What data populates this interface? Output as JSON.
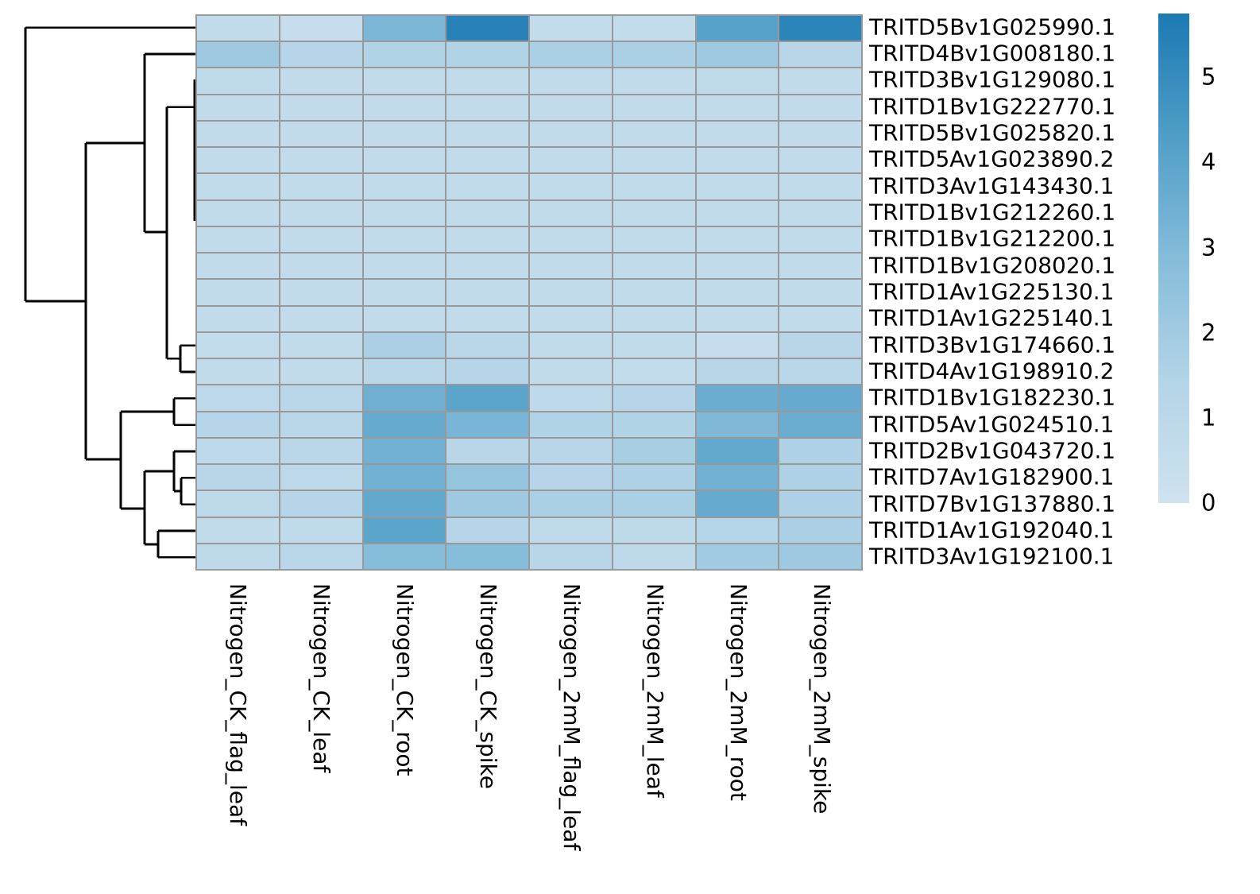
{
  "chart_data": {
    "type": "heatmap",
    "title": "",
    "columns": [
      "Nitrogen_CK_flag_leaf",
      "Nitrogen_CK_leaf",
      "Nitrogen_CK_root",
      "Nitrogen_CK_spike",
      "Nitrogen_2mM_flag_leaf",
      "Nitrogen_2mM_leaf",
      "Nitrogen_2mM_root",
      "Nitrogen_2mM_spike"
    ],
    "rows": [
      "TRITD5Bv1G025990.1",
      "TRITD4Bv1G008180.1",
      "TRITD3Bv1G129080.1",
      "TRITD1Bv1G222770.1",
      "TRITD5Bv1G025820.1",
      "TRITD5Av1G023890.2",
      "TRITD3Av1G143430.1",
      "TRITD1Bv1G212260.1",
      "TRITD1Bv1G212200.1",
      "TRITD1Bv1G208020.1",
      "TRITD1Av1G225130.1",
      "TRITD1Av1G225140.1",
      "TRITD3Bv1G174660.1",
      "TRITD4Av1G198910.2",
      "TRITD1Bv1G182230.1",
      "TRITD5Av1G024510.1",
      "TRITD2Bv1G043720.1",
      "TRITD7Av1G182900.1",
      "TRITD7Bv1G137880.1",
      "TRITD1Av1G192040.1",
      "TRITD3Av1G192100.1"
    ],
    "matrix": [
      [
        0.7,
        0.5,
        3.1,
        5.4,
        0.6,
        0.6,
        4.1,
        5.3
      ],
      [
        2.1,
        1.3,
        1.5,
        1.5,
        1.7,
        1.7,
        2.1,
        1.2
      ],
      [
        0.8,
        0.7,
        0.7,
        0.7,
        0.7,
        0.7,
        0.8,
        0.7
      ],
      [
        0.7,
        0.7,
        0.7,
        0.7,
        0.7,
        0.7,
        0.7,
        0.7
      ],
      [
        0.7,
        0.7,
        0.7,
        0.7,
        0.7,
        0.7,
        0.7,
        0.7
      ],
      [
        0.7,
        0.7,
        0.7,
        0.7,
        0.7,
        0.7,
        0.7,
        0.7
      ],
      [
        0.7,
        0.7,
        0.7,
        0.7,
        0.7,
        0.7,
        0.7,
        0.7
      ],
      [
        0.7,
        0.7,
        0.7,
        0.7,
        0.7,
        0.7,
        0.7,
        0.7
      ],
      [
        0.7,
        0.7,
        0.7,
        0.7,
        0.7,
        0.7,
        0.7,
        0.7
      ],
      [
        0.7,
        0.7,
        0.7,
        0.7,
        0.7,
        0.7,
        0.7,
        0.7
      ],
      [
        0.7,
        0.7,
        0.7,
        0.7,
        0.7,
        0.7,
        0.7,
        0.7
      ],
      [
        0.7,
        0.7,
        0.7,
        0.7,
        0.7,
        0.7,
        0.7,
        0.7
      ],
      [
        0.6,
        0.7,
        1.7,
        1.1,
        0.7,
        0.7,
        0.5,
        1.2
      ],
      [
        0.7,
        0.7,
        1.1,
        1.3,
        0.7,
        0.6,
        1.2,
        1.1
      ],
      [
        1.0,
        1.1,
        3.5,
        4.0,
        0.9,
        1.3,
        3.6,
        3.7
      ],
      [
        1.3,
        1.1,
        3.7,
        3.2,
        1.5,
        1.5,
        3.0,
        3.6
      ],
      [
        0.9,
        1.1,
        3.4,
        1.2,
        1.2,
        1.8,
        3.8,
        1.6
      ],
      [
        1.2,
        1.0,
        3.4,
        2.4,
        1.3,
        1.6,
        3.4,
        1.6
      ],
      [
        1.0,
        1.3,
        3.8,
        2.1,
        1.7,
        1.7,
        3.7,
        1.6
      ],
      [
        0.7,
        0.8,
        4.0,
        1.3,
        0.8,
        0.9,
        1.4,
        1.7
      ],
      [
        0.9,
        1.1,
        2.9,
        2.9,
        1.2,
        0.9,
        2.0,
        2.1
      ]
    ],
    "legend": {
      "position": "right",
      "min": 0,
      "max": 5.75,
      "ticks": [
        {
          "label": "5",
          "value": 5
        },
        {
          "label": "4",
          "value": 4
        },
        {
          "label": "3",
          "value": 3
        },
        {
          "label": "2",
          "value": 2
        },
        {
          "label": "1",
          "value": 1
        },
        {
          "label": "0",
          "value": 0
        }
      ]
    },
    "color_scale": {
      "stops": [
        {
          "v": 0.0,
          "c": "#cfe2ef"
        },
        {
          "v": 1.44,
          "c": "#b3d4e7"
        },
        {
          "v": 2.88,
          "c": "#85bcda"
        },
        {
          "v": 4.31,
          "c": "#4f9ec7"
        },
        {
          "v": 5.75,
          "c": "#1b79b3"
        }
      ]
    },
    "grid_line_color": "#999999",
    "dendrogram": {
      "orientation": "left",
      "line_color": "#000000",
      "segments": [
        [
          32,
          34.7,
          32,
          379
        ],
        [
          32,
          34.7,
          246,
          34.7
        ],
        [
          32,
          379,
          108,
          379
        ],
        [
          108,
          180,
          108,
          578
        ],
        [
          108,
          180,
          182,
          180
        ],
        [
          182,
          68,
          182,
          292
        ],
        [
          182,
          68,
          246,
          68
        ],
        [
          182,
          292,
          210,
          292
        ],
        [
          210,
          134.7,
          210,
          451.3
        ],
        [
          210,
          134.7,
          246,
          134.7
        ],
        [
          245,
          100,
          245,
          278
        ],
        [
          210,
          451.3,
          227,
          451.3
        ],
        [
          227,
          434.7,
          227,
          468
        ],
        [
          227,
          434.7,
          246,
          434.7
        ],
        [
          227,
          468,
          246,
          468
        ],
        [
          108,
          578,
          152,
          578
        ],
        [
          152,
          518,
          152,
          640
        ],
        [
          152,
          518,
          219,
          518
        ],
        [
          219,
          501.3,
          219,
          534.7
        ],
        [
          219,
          501.3,
          246,
          501.3
        ],
        [
          219,
          534.7,
          246,
          534.7
        ],
        [
          152,
          640,
          182,
          640
        ],
        [
          182,
          593,
          182,
          685
        ],
        [
          182,
          593,
          219,
          593
        ],
        [
          219,
          568,
          219,
          618
        ],
        [
          219,
          568,
          246,
          568
        ],
        [
          219,
          618,
          228,
          618
        ],
        [
          228,
          601.3,
          228,
          634.7
        ],
        [
          228,
          601.3,
          246,
          601.3
        ],
        [
          228,
          634.7,
          246,
          634.7
        ],
        [
          182,
          685,
          199,
          685
        ],
        [
          199,
          668,
          199,
          701.3
        ],
        [
          199,
          668,
          246,
          668
        ],
        [
          199,
          701.3,
          246,
          701.3
        ]
      ]
    }
  }
}
